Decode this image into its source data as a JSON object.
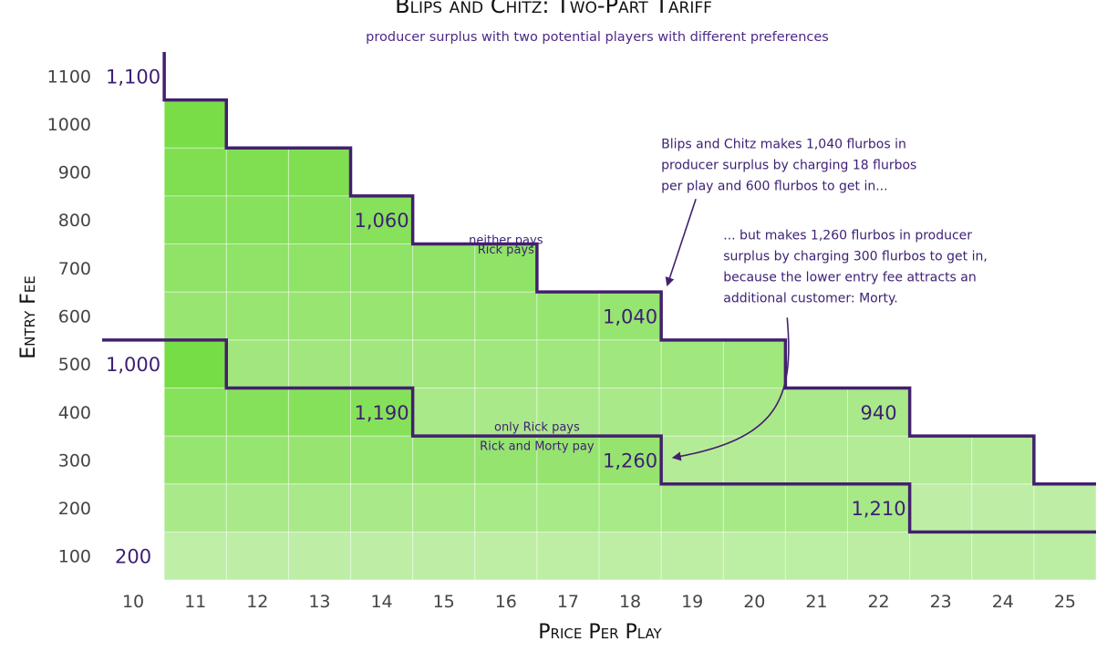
{
  "header": {
    "title": "Blips and Chitz: Two-Part Tariff",
    "subtitle": "producer surplus with two potential players with different preferences"
  },
  "chart_data": {
    "type": "heatmap",
    "xlabel": "Price Per Play",
    "ylabel": "Entry Fee",
    "x": [
      10,
      11,
      12,
      13,
      14,
      15,
      16,
      17,
      18,
      19,
      20,
      21,
      22,
      23,
      24,
      25
    ],
    "y": [
      100,
      200,
      300,
      400,
      500,
      600,
      700,
      800,
      900,
      1000,
      1100
    ],
    "grid": true,
    "color_scale": {
      "low": "#e4f7d8",
      "high": "#77dd46"
    },
    "boundaries": [
      {
        "name": "upper",
        "points": [
          [
            10.5,
            1150
          ],
          [
            10.5,
            1050
          ],
          [
            11.5,
            1050
          ],
          [
            11.5,
            950
          ],
          [
            13.5,
            950
          ],
          [
            13.5,
            850
          ],
          [
            14.5,
            850
          ],
          [
            14.5,
            750
          ],
          [
            16.5,
            750
          ],
          [
            16.5,
            650
          ],
          [
            18.5,
            650
          ],
          [
            18.5,
            550
          ],
          [
            20.5,
            550
          ],
          [
            20.5,
            450
          ],
          [
            22.5,
            450
          ],
          [
            22.5,
            350
          ],
          [
            24.5,
            350
          ],
          [
            24.5,
            250
          ],
          [
            25.5,
            250
          ]
        ]
      },
      {
        "name": "lower",
        "points": [
          [
            9.5,
            550
          ],
          [
            11.5,
            550
          ],
          [
            11.5,
            450
          ],
          [
            14.5,
            450
          ],
          [
            14.5,
            350
          ],
          [
            18.5,
            350
          ],
          [
            18.5,
            250
          ],
          [
            22.5,
            250
          ],
          [
            22.5,
            150
          ],
          [
            25.5,
            150
          ]
        ]
      }
    ],
    "cell_labels": [
      {
        "x": 10,
        "y": 1100,
        "text": "1,100"
      },
      {
        "x": 14,
        "y": 800,
        "text": "1,060"
      },
      {
        "x": 18,
        "y": 600,
        "text": "1,040"
      },
      {
        "x": 10,
        "y": 500,
        "text": "1,000"
      },
      {
        "x": 14,
        "y": 400,
        "text": "1,190"
      },
      {
        "x": 18,
        "y": 300,
        "text": "1,260"
      },
      {
        "x": 22,
        "y": 400,
        "text": "940"
      },
      {
        "x": 22,
        "y": 200,
        "text": "1,210"
      },
      {
        "x": 10,
        "y": 100,
        "text": "200"
      }
    ],
    "region_labels": [
      {
        "x": 16,
        "y": 760,
        "text": "neither pays"
      },
      {
        "x": 16,
        "y": 740,
        "text": "Rick pays"
      },
      {
        "x": 16.5,
        "y": 370,
        "text": "only Rick pays"
      },
      {
        "x": 16.5,
        "y": 330,
        "text": "Rick and Morty pay"
      }
    ],
    "annotations": [
      {
        "lines": [
          "Blips and Chitz makes 1,040 flurbos in",
          "producer surplus by charging 18 flurbos",
          "per play and 600 flurbos to get in..."
        ],
        "x": 18.5,
        "y": 950,
        "arrow_to": [
          18.6,
          665
        ]
      },
      {
        "lines": [
          "... but makes 1,260 flurbos in producer",
          "surplus by charging 300 flurbos to get in,",
          "because the lower entry fee attracts an",
          "additional customer: Morty."
        ],
        "x": 19.5,
        "y": 760,
        "arrow_to": [
          18.7,
          305
        ]
      }
    ]
  }
}
